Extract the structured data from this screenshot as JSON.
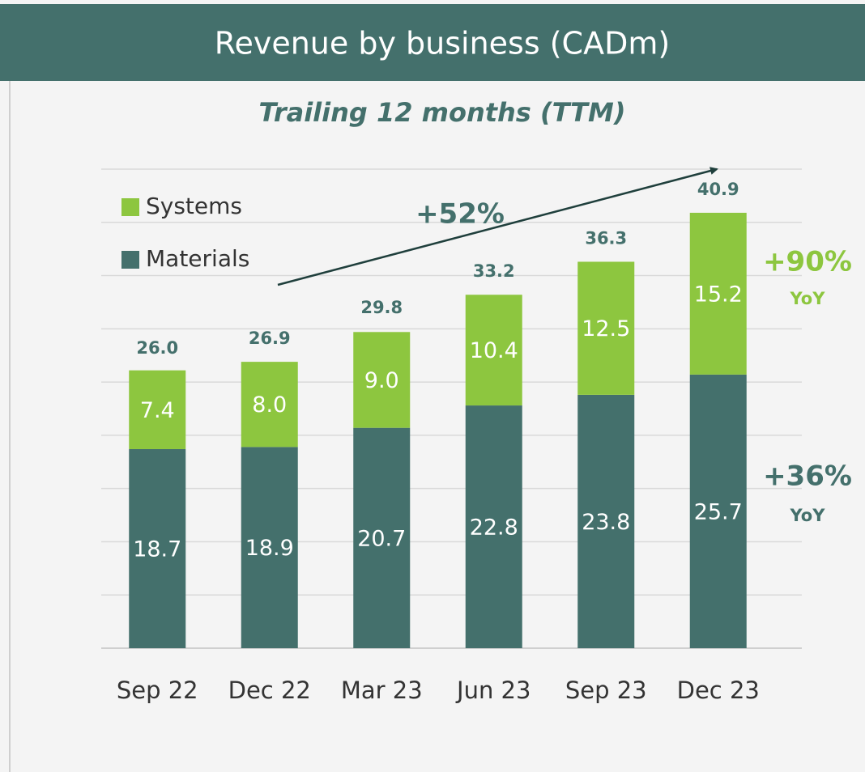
{
  "chart_data": {
    "type": "stacked-bar",
    "title": "Revenue by business (CADm)",
    "subtitle": "Trailing 12 months (TTM)",
    "categories": [
      "Sep 22",
      "Dec 22",
      "Mar 23",
      "Jun 23",
      "Sep 23",
      "Dec 23"
    ],
    "series": [
      {
        "name": "Materials",
        "color": "#44706c",
        "values": [
          18.7,
          18.9,
          20.7,
          22.8,
          23.8,
          25.7
        ],
        "value_labels": [
          "18.7",
          "18.9",
          "20.7",
          "22.8",
          "23.8",
          "25.7"
        ]
      },
      {
        "name": "Systems",
        "color": "#8dc63f",
        "values": [
          7.4,
          8.0,
          9.0,
          10.4,
          12.5,
          15.2
        ],
        "value_labels": [
          "7.4",
          "8.0",
          "9.0",
          "10.4",
          "12.5",
          "15.2"
        ]
      }
    ],
    "totals": [
      26.0,
      26.9,
      29.8,
      33.2,
      36.3,
      40.9
    ],
    "total_labels": [
      "26.0",
      "26.9",
      "29.8",
      "33.2",
      "36.3",
      "40.9"
    ],
    "ylim": [
      0,
      45
    ],
    "yticks": [
      0,
      5,
      10,
      15,
      20,
      25,
      30,
      35,
      40,
      45
    ],
    "grid": true,
    "legend": "top-left",
    "annotations": {
      "growth": "+52%",
      "systems_yoy": "+90%",
      "systems_yoy_unit": "YoY",
      "materials_yoy": "+36%",
      "materials_yoy_unit": "YoY"
    }
  }
}
